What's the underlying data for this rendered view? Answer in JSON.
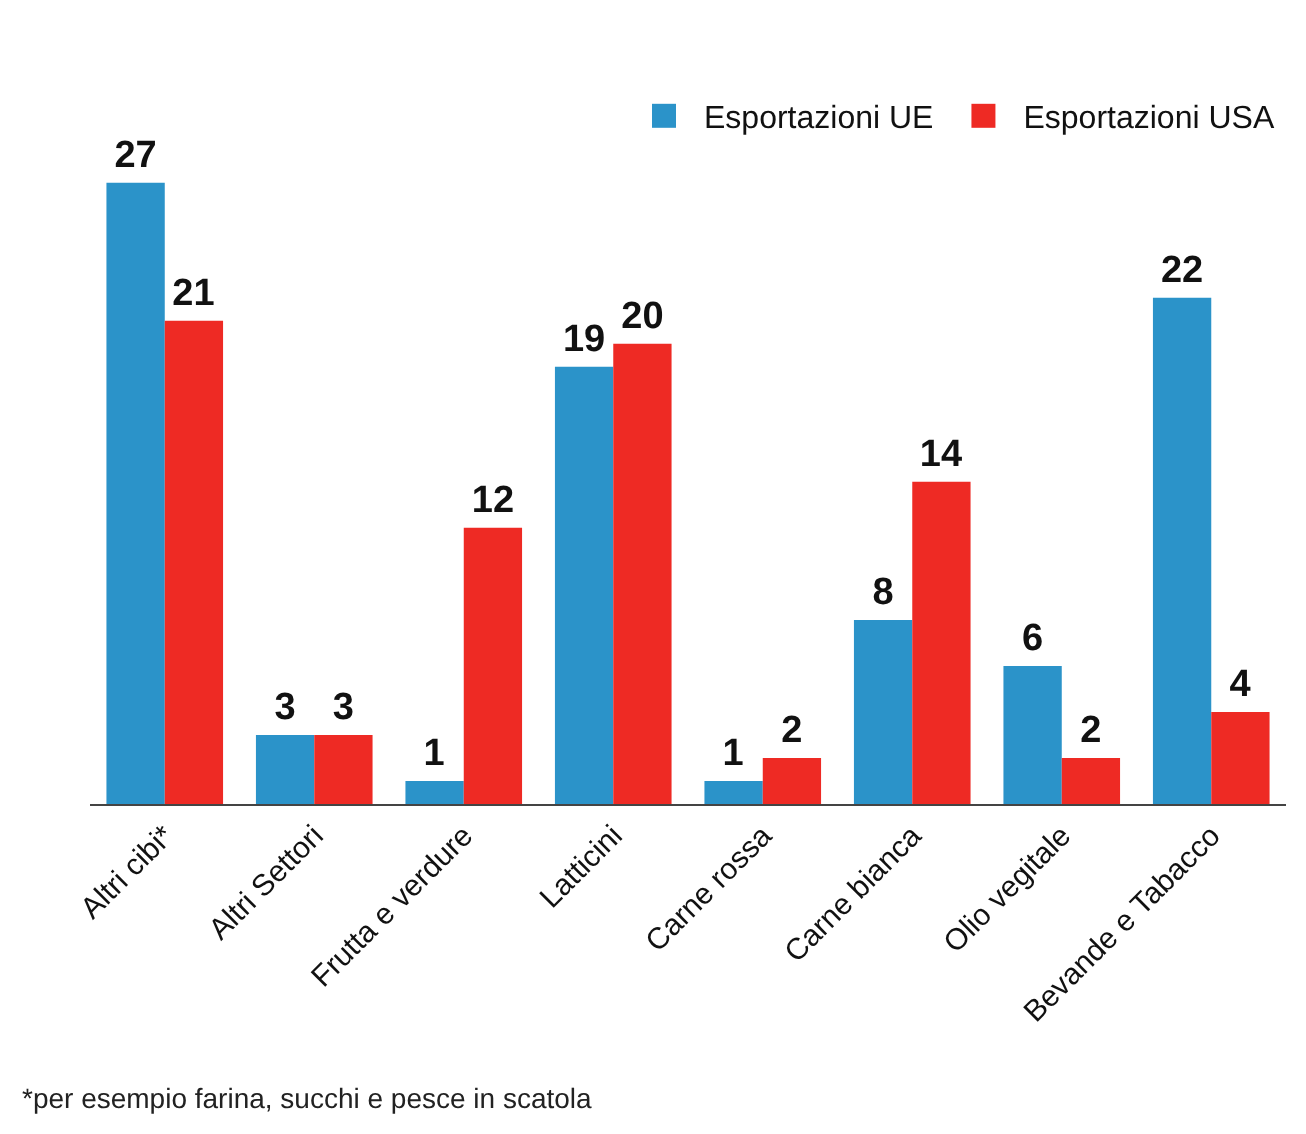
{
  "chart_data": {
    "type": "bar",
    "categories": [
      "Altri cibi*",
      "Altri Settori",
      "Frutta e verdure",
      "Latticini",
      "Carne rossa",
      "Carne bianca",
      "Olio vegitale",
      "Bevande e Tabacco"
    ],
    "series": [
      {
        "name": "Esportazioni UE",
        "color": "#2b93c9",
        "values": [
          27,
          3,
          1,
          19,
          1,
          8,
          6,
          22
        ]
      },
      {
        "name": "Esportazioni USA",
        "color": "#ee2a24",
        "values": [
          21,
          3,
          12,
          20,
          2,
          14,
          2,
          4
        ]
      }
    ],
    "data_labels": true,
    "legend": "top right",
    "annotations": [
      "*per esempio farina, succhi e pesce in scatola"
    ]
  }
}
